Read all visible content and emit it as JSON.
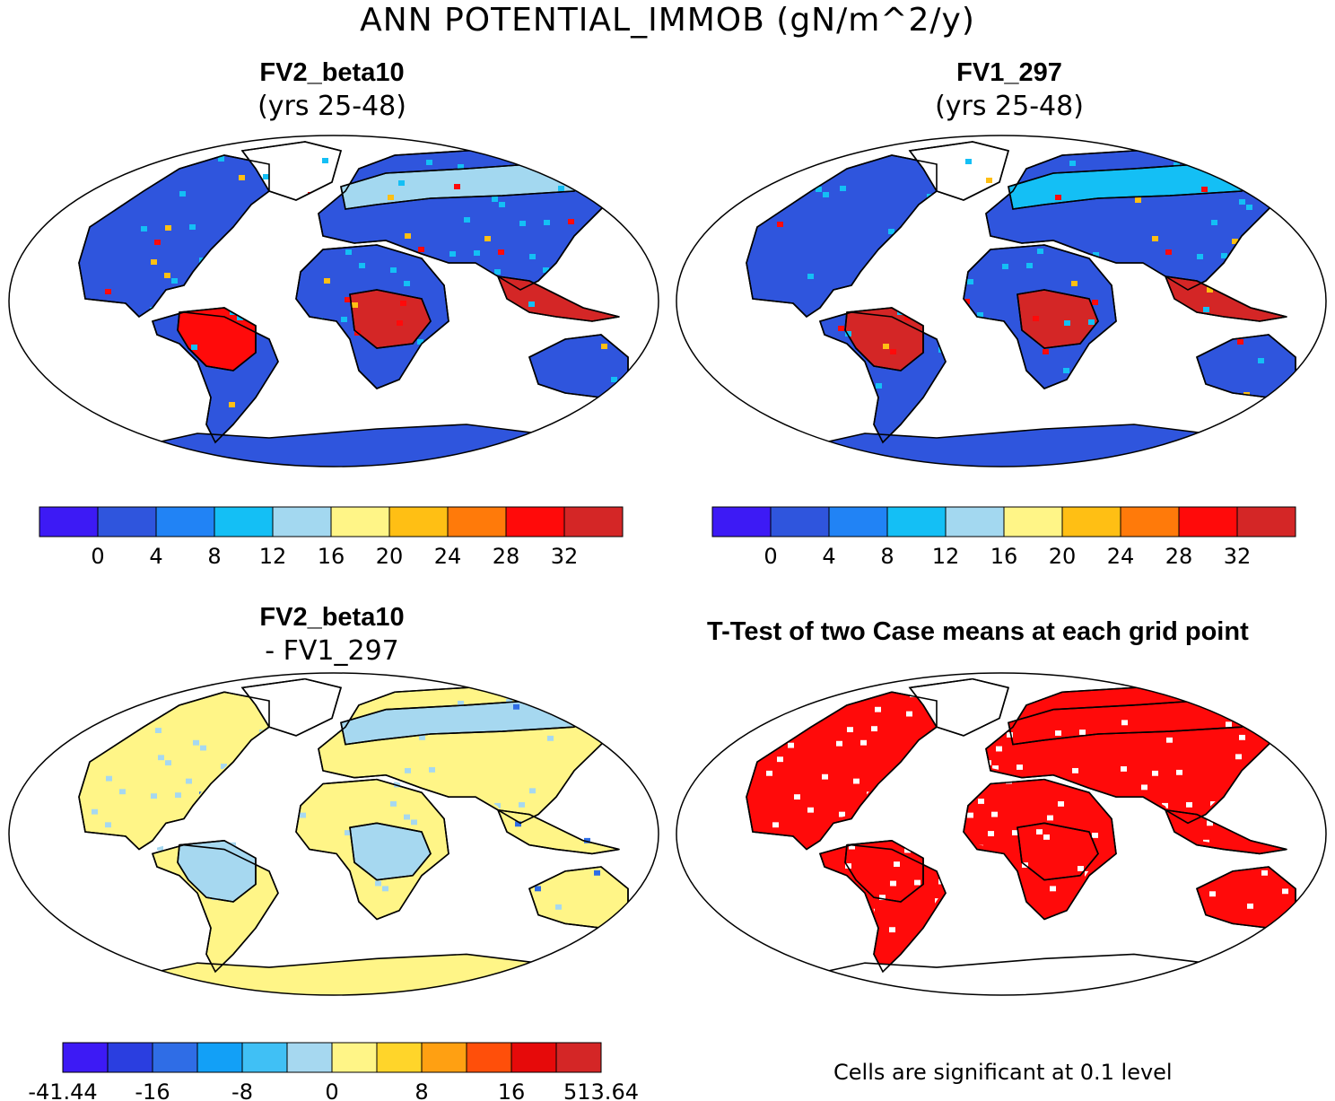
{
  "figure": {
    "title": "ANN POTENTIAL_IMMOB (gN/m^2/y)"
  },
  "panels": {
    "top_left": {
      "title": "FV2_beta10",
      "subtitle": "(yrs 25-48)"
    },
    "top_right": {
      "title": "FV1_297",
      "subtitle": "(yrs 25-48)"
    },
    "bottom_left": {
      "title": "FV2_beta10",
      "subtitle": "- FV1_297"
    },
    "bottom_right": {
      "title": "T-Test of two Case means at each grid point",
      "note": "Cells are significant at 0.1 level"
    }
  },
  "colorbars": {
    "field": {
      "colors": [
        "#3d1af5",
        "#2f55dd",
        "#2183f5",
        "#14bff5",
        "#a3d8f0",
        "#fff587",
        "#ffbf14",
        "#ff7a0a",
        "#ff0a0a",
        "#d42626"
      ],
      "labels": [
        "0",
        "4",
        "8",
        "12",
        "16",
        "20",
        "24",
        "28",
        "32"
      ]
    },
    "diff": {
      "colors": [
        "#3d1af5",
        "#2a3ee0",
        "#2f6de6",
        "#12a0f7",
        "#40c0f5",
        "#a6d8f0",
        "#fff587",
        "#ffd52a",
        "#ffa012",
        "#ff4f0a",
        "#e60a0a",
        "#d42626"
      ],
      "labels": [
        "-41.44",
        "-16",
        "-8",
        "0",
        "8",
        "16",
        "513.64"
      ]
    }
  },
  "palette": {
    "ocean": "#ffffff",
    "antarctica_field": "#2f55dd",
    "antarctica_diff": "#fff587",
    "significant": "#ff0a0a"
  },
  "map_fields": {
    "top_left": {
      "antarctica": "#2f55dd",
      "regions": [
        {
          "name": "north-america",
          "color": "#2f55dd"
        },
        {
          "name": "greenland",
          "color": "#ffffff"
        },
        {
          "name": "south-america",
          "color": "#2f55dd"
        },
        {
          "name": "amazon",
          "color": "#ff0a0a"
        },
        {
          "name": "africa",
          "color": "#2f55dd"
        },
        {
          "name": "central-africa",
          "color": "#d42626"
        },
        {
          "name": "eurasia",
          "color": "#2f55dd"
        },
        {
          "name": "boreal-band",
          "color": "#a3d8f0"
        },
        {
          "name": "southeast-asia",
          "color": "#d42626"
        },
        {
          "name": "australia",
          "color": "#2f55dd"
        }
      ]
    },
    "top_right": {
      "antarctica": "#2f55dd",
      "regions": [
        {
          "name": "north-america",
          "color": "#2f55dd"
        },
        {
          "name": "greenland",
          "color": "#ffffff"
        },
        {
          "name": "south-america",
          "color": "#2f55dd"
        },
        {
          "name": "amazon",
          "color": "#d42626"
        },
        {
          "name": "africa",
          "color": "#2f55dd"
        },
        {
          "name": "central-africa",
          "color": "#d42626"
        },
        {
          "name": "eurasia",
          "color": "#2f55dd"
        },
        {
          "name": "boreal-band",
          "color": "#14bff5"
        },
        {
          "name": "southeast-asia",
          "color": "#d42626"
        },
        {
          "name": "australia",
          "color": "#2f55dd"
        }
      ]
    },
    "bottom_left": {
      "antarctica": "#fff587",
      "regions": [
        {
          "name": "north-america",
          "color": "#fff587"
        },
        {
          "name": "greenland",
          "color": "#ffffff"
        },
        {
          "name": "south-america",
          "color": "#fff587"
        },
        {
          "name": "amazon",
          "color": "#a6d8f0"
        },
        {
          "name": "africa",
          "color": "#fff587"
        },
        {
          "name": "central-africa",
          "color": "#a6d8f0"
        },
        {
          "name": "eurasia",
          "color": "#fff587"
        },
        {
          "name": "boreal-band",
          "color": "#a6d8f0"
        },
        {
          "name": "southeast-asia",
          "color": "#fff587"
        },
        {
          "name": "australia",
          "color": "#fff587"
        }
      ]
    },
    "bottom_right": {
      "antarctica": "#ffffff",
      "regions": [
        {
          "name": "north-america",
          "color": "#ff0a0a"
        },
        {
          "name": "greenland",
          "color": "#ffffff"
        },
        {
          "name": "south-america",
          "color": "#ff0a0a"
        },
        {
          "name": "amazon",
          "color": "#ff0a0a"
        },
        {
          "name": "africa",
          "color": "#ff0a0a"
        },
        {
          "name": "central-africa",
          "color": "#ff0a0a"
        },
        {
          "name": "eurasia",
          "color": "#ff0a0a"
        },
        {
          "name": "boreal-band",
          "color": "#ff0a0a"
        },
        {
          "name": "southeast-asia",
          "color": "#ff0a0a"
        },
        {
          "name": "australia",
          "color": "#ff0a0a"
        }
      ]
    }
  }
}
